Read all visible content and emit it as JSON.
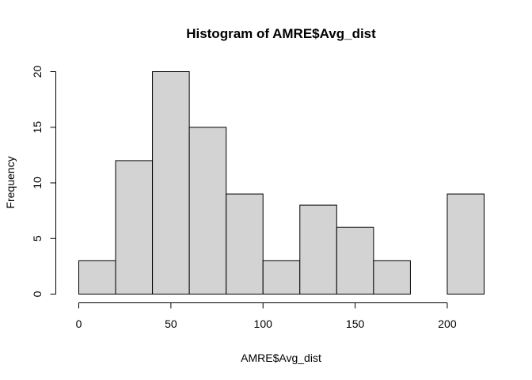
{
  "chart_data": {
    "type": "bar",
    "title": "Histogram of AMRE$Avg_dist",
    "xlabel": "AMRE$Avg_dist",
    "ylabel": "Frequency",
    "bins": [
      {
        "start": 0,
        "end": 20,
        "count": 3
      },
      {
        "start": 20,
        "end": 40,
        "count": 12
      },
      {
        "start": 40,
        "end": 60,
        "count": 20
      },
      {
        "start": 60,
        "end": 80,
        "count": 15
      },
      {
        "start": 80,
        "end": 100,
        "count": 9
      },
      {
        "start": 100,
        "end": 120,
        "count": 3
      },
      {
        "start": 120,
        "end": 140,
        "count": 8
      },
      {
        "start": 140,
        "end": 160,
        "count": 6
      },
      {
        "start": 160,
        "end": 180,
        "count": 3
      },
      {
        "start": 180,
        "end": 200,
        "count": 0
      },
      {
        "start": 200,
        "end": 220,
        "count": 9
      }
    ],
    "xlim": [
      0,
      220
    ],
    "ylim": [
      0,
      20
    ],
    "xticks": [
      0,
      50,
      100,
      150,
      200
    ],
    "yticks": [
      0,
      5,
      10,
      15,
      20
    ],
    "bar_color": "#d3d3d3",
    "edge_color": "#000000",
    "grid": false,
    "legend": "none"
  }
}
